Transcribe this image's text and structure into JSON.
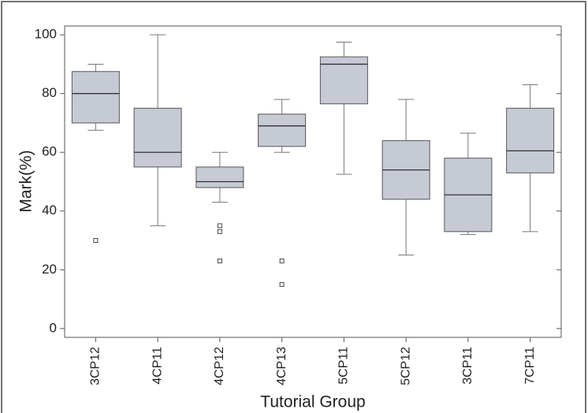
{
  "chart_data": {
    "type": "box",
    "x_label": "Tutorial Group",
    "y_label": "Mark(%)",
    "categories": [
      "3CP12",
      "4CP11",
      "4CP12",
      "4CP13",
      "5CP11",
      "5CP12",
      "3CP11",
      "7CP11"
    ],
    "boxes": [
      {
        "low": 67.5,
        "q1": 70,
        "median": 80,
        "q3": 87.5,
        "high": 90,
        "outliers": [
          30
        ]
      },
      {
        "low": 35,
        "q1": 55,
        "median": 60,
        "q3": 75,
        "high": 100,
        "outliers": []
      },
      {
        "low": 43,
        "q1": 48,
        "median": 50,
        "q3": 55,
        "high": 60,
        "outliers": [
          35,
          33,
          23
        ]
      },
      {
        "low": 60,
        "q1": 62,
        "median": 69,
        "q3": 73,
        "high": 78,
        "outliers": [
          23,
          15
        ]
      },
      {
        "low": 52.5,
        "q1": 76.5,
        "median": 90,
        "q3": 92.5,
        "high": 97.5,
        "outliers": []
      },
      {
        "low": 25,
        "q1": 44,
        "median": 54,
        "q3": 64,
        "high": 78,
        "outliers": []
      },
      {
        "low": 32,
        "q1": 33,
        "median": 45.5,
        "q3": 58,
        "high": 66.5,
        "outliers": []
      },
      {
        "low": 33,
        "q1": 53,
        "median": 60.5,
        "q3": 75,
        "high": 83,
        "outliers": []
      }
    ],
    "color": "#c6cad4",
    "ylim": [
      -3,
      103
    ],
    "yticks": [
      0,
      20,
      40,
      60,
      80,
      100
    ]
  }
}
